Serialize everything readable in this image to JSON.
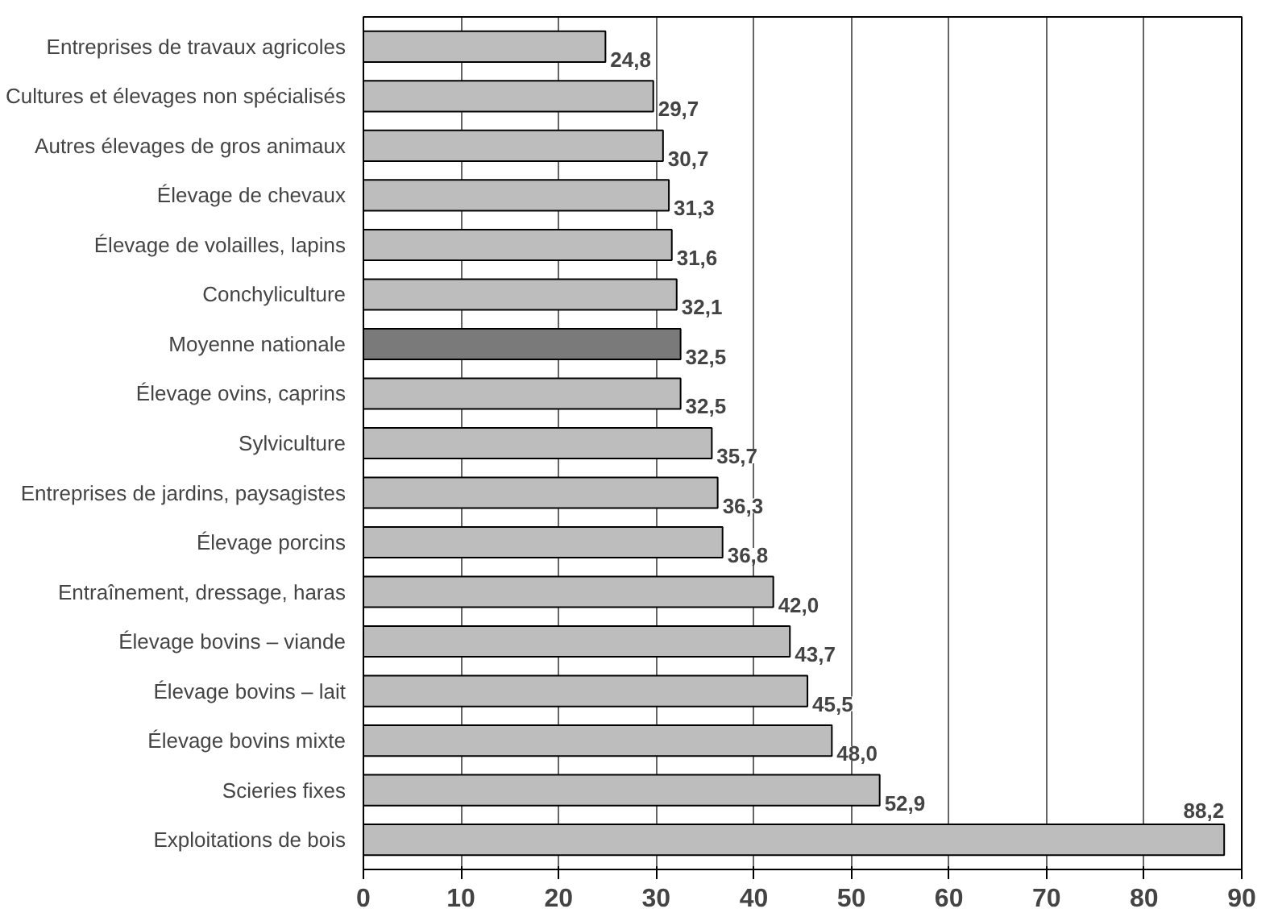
{
  "chart_data": {
    "type": "bar",
    "orientation": "horizontal",
    "categories": [
      "Entreprises de travaux agricoles",
      "Cultures et élevages non spécialisés",
      "Autres élevages de gros animaux",
      "Élevage de chevaux",
      "Élevage de volailles, lapins",
      "Conchyliculture",
      "Moyenne nationale",
      "Élevage ovins, caprins",
      "Sylviculture",
      "Entreprises de jardins, paysagistes",
      "Élevage porcins",
      "Entraînement, dressage, haras",
      "Élevage bovins – viande",
      "Élevage bovins – lait",
      "Élevage bovins mixte",
      "Scieries fixes",
      "Exploitations de bois"
    ],
    "values": [
      24.8,
      29.7,
      30.7,
      31.3,
      31.6,
      32.1,
      32.5,
      32.5,
      35.7,
      36.3,
      36.8,
      42.0,
      43.7,
      45.5,
      48.0,
      52.9,
      88.2
    ],
    "value_labels": [
      "24,8",
      "29,7",
      "30,7",
      "31,3",
      "31,6",
      "32,1",
      "32,5",
      "32,5",
      "35,7",
      "36,3",
      "36,8",
      "42,0",
      "43,7",
      "45,5",
      "48,0",
      "52,9",
      "88,2"
    ],
    "colors": [
      "#bdbdbd",
      "#bdbdbd",
      "#bdbdbd",
      "#bdbdbd",
      "#bdbdbd",
      "#bdbdbd",
      "#7a7a7a",
      "#bdbdbd",
      "#bdbdbd",
      "#bdbdbd",
      "#bdbdbd",
      "#bdbdbd",
      "#bdbdbd",
      "#bdbdbd",
      "#bdbdbd",
      "#bdbdbd",
      "#bdbdbd"
    ],
    "xlim": [
      0,
      90
    ],
    "xticks": [
      0,
      10,
      20,
      30,
      40,
      50,
      60,
      70,
      80,
      90
    ],
    "grid": "x"
  }
}
